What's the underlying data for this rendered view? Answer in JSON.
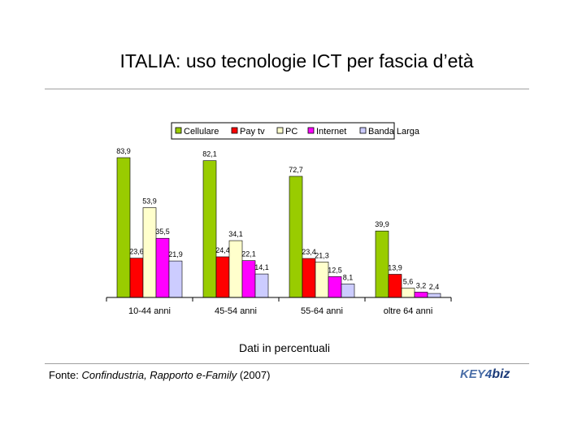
{
  "page": {
    "title": "ITALIA: uso tecnologie ICT per fascia d’età",
    "caption": "Dati in percentuali",
    "source_label": "Fonte: ",
    "source_work": "Confindustria, Rapporto e-Family",
    "source_year": " (2007)",
    "logo_key": "KEY",
    "logo_num": "4",
    "logo_biz": "biz"
  },
  "chart_data": {
    "type": "bar",
    "categories": [
      "10-44 anni",
      "45-54 anni",
      "55-64 anni",
      "oltre 64 anni"
    ],
    "series": [
      {
        "name": "Cellulare",
        "color": "#99cc00",
        "values": [
          83.9,
          82.1,
          72.7,
          39.9
        ],
        "labels": [
          "83,9",
          "82,1",
          "72,7",
          "39,9"
        ]
      },
      {
        "name": "Pay tv",
        "color": "#ff0000",
        "values": [
          23.6,
          24.4,
          23.4,
          13.9
        ],
        "labels": [
          "23,6",
          "24,4",
          "23,4",
          "13,9"
        ]
      },
      {
        "name": "PC",
        "color": "#ffffcc",
        "values": [
          53.9,
          34.1,
          21.3,
          5.6
        ],
        "labels": [
          "53,9",
          "34,1",
          "21,3",
          "5,6"
        ]
      },
      {
        "name": "Internet",
        "color": "#ff00ff",
        "values": [
          35.5,
          22.1,
          12.5,
          3.2
        ],
        "labels": [
          "35,5",
          "22,1",
          "12,5",
          "3,2"
        ]
      },
      {
        "name": "Banda Larga",
        "color": "#ccccff",
        "values": [
          21.9,
          14.1,
          8.1,
          2.4
        ],
        "labels": [
          "21,9",
          "14,1",
          "8,1",
          "2,4"
        ]
      }
    ],
    "ylim": [
      0,
      85
    ],
    "legend": "top",
    "grid": false
  }
}
